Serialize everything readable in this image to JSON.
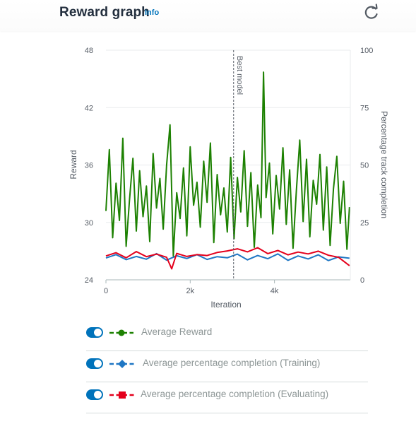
{
  "header": {
    "title": "Reward graph",
    "info_link": "Info",
    "refresh_icon": "refresh-icon"
  },
  "colors": {
    "reward": "#1d8102",
    "training": "#1f77c4",
    "evaluating": "#e4001c",
    "toggle": "#0073bb",
    "axis_text": "#545b64"
  },
  "chart_data": {
    "type": "line",
    "xlabel": "Iteration",
    "ylabel_left": "Reward",
    "ylabel_right": "Percentage track completion",
    "xlim": [
      0,
      5800
    ],
    "ylim_left": [
      24,
      48
    ],
    "ylim_right": [
      0,
      100
    ],
    "x_ticks": [
      "0",
      "2k",
      "4k"
    ],
    "y_ticks_left": [
      "24",
      "30",
      "36",
      "42",
      "48"
    ],
    "y_ticks_right": [
      "0",
      "25",
      "50",
      "75",
      "100"
    ],
    "grid": true,
    "annotation": {
      "label": "Best model",
      "x": 3030
    },
    "series": [
      {
        "name": "Average Reward",
        "axis": "left",
        "x": [
          0,
          80,
          160,
          240,
          320,
          400,
          480,
          560,
          640,
          720,
          800,
          880,
          960,
          1040,
          1120,
          1200,
          1280,
          1360,
          1440,
          1520,
          1600,
          1680,
          1760,
          1840,
          1920,
          2000,
          2080,
          2160,
          2240,
          2320,
          2400,
          2480,
          2560,
          2640,
          2720,
          2800,
          2880,
          2960,
          3040,
          3120,
          3200,
          3280,
          3360,
          3440,
          3520,
          3600,
          3680,
          3740,
          3800,
          3880,
          3960,
          4040,
          4120,
          4200,
          4280,
          4360,
          4440,
          4520,
          4600,
          4680,
          4760,
          4840,
          4920,
          5000,
          5080,
          5160,
          5240,
          5320,
          5400,
          5480,
          5560,
          5640,
          5720,
          5780
        ],
        "values": [
          31.2,
          37.6,
          28.4,
          34.1,
          30.2,
          38.8,
          27.5,
          32.4,
          36.7,
          29.1,
          35.4,
          30.6,
          33.8,
          28.0,
          37.2,
          31.5,
          34.6,
          29.3,
          36.0,
          40.2,
          26.5,
          33.1,
          30.4,
          35.7,
          28.6,
          37.9,
          31.8,
          34.2,
          29.5,
          36.4,
          32.1,
          38.3,
          27.9,
          35.0,
          30.8,
          33.6,
          29.0,
          36.8,
          28.3,
          34.7,
          31.1,
          37.5,
          29.6,
          35.2,
          27.4,
          33.9,
          30.5,
          45.7,
          32.6,
          36.2,
          28.8,
          34.9,
          31.4,
          37.8,
          29.8,
          35.5,
          27.3,
          33.3,
          38.6,
          30.1,
          36.6,
          28.5,
          34.4,
          31.9,
          37.1,
          29.2,
          35.8,
          27.6,
          33.5,
          36.9,
          29.9,
          34.3,
          27.2,
          31.6
        ]
      },
      {
        "name": "Average percentage completion (Training)",
        "axis": "right",
        "x": [
          0,
          240,
          480,
          720,
          960,
          1200,
          1440,
          1680,
          1920,
          2160,
          2400,
          2640,
          2880,
          3120,
          3360,
          3600,
          3840,
          4080,
          4320,
          4560,
          4800,
          5040,
          5280,
          5520,
          5780
        ],
        "values": [
          9.5,
          11.0,
          8.8,
          10.2,
          9.0,
          11.4,
          8.6,
          10.5,
          9.3,
          11.0,
          8.9,
          10.1,
          9.6,
          11.2,
          8.7,
          10.6,
          9.2,
          11.3,
          8.5,
          10.4,
          9.1,
          10.9,
          8.4,
          10.0,
          9.4
        ]
      },
      {
        "name": "Average percentage completion (Evaluating)",
        "axis": "right",
        "x": [
          0,
          240,
          480,
          720,
          960,
          1200,
          1440,
          1560,
          1680,
          1920,
          2160,
          2400,
          2640,
          2880,
          3120,
          3360,
          3600,
          3840,
          4080,
          4320,
          4560,
          4800,
          5040,
          5280,
          5520,
          5780
        ],
        "values": [
          10.4,
          11.8,
          9.6,
          12.3,
          10.1,
          11.2,
          9.8,
          4.8,
          11.5,
          10.2,
          11.0,
          10.6,
          11.9,
          12.6,
          13.5,
          12.2,
          14.0,
          11.4,
          12.8,
          10.9,
          12.1,
          11.3,
          12.5,
          10.7,
          9.8,
          6.2
        ]
      }
    ]
  },
  "legend": [
    {
      "label": "Average Reward",
      "marker": "circle",
      "toggle_on": true
    },
    {
      "label": "Average percentage completion (Training)",
      "marker": "diamond",
      "toggle_on": true
    },
    {
      "label": "Average percentage completion (Evaluating)",
      "marker": "square",
      "toggle_on": true
    }
  ]
}
